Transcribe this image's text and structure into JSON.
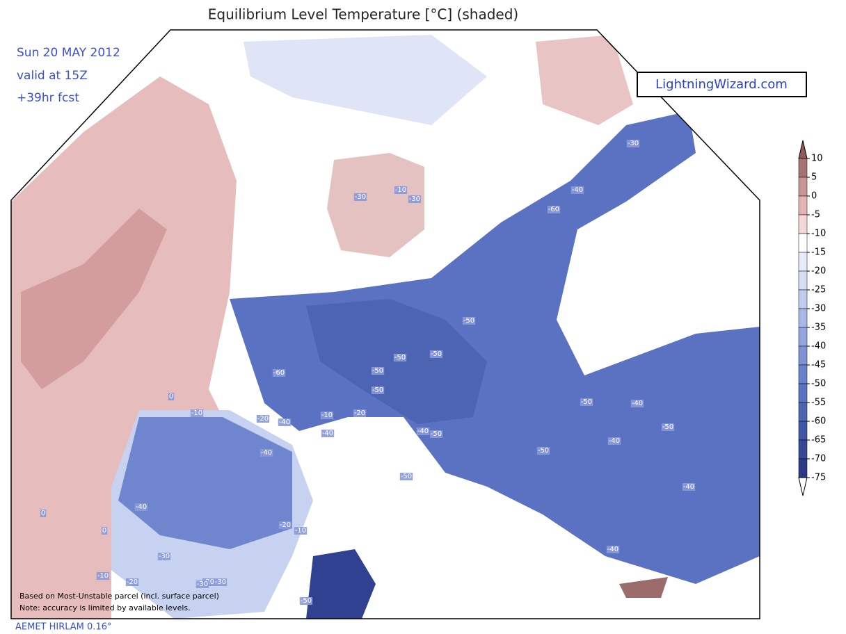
{
  "header": {
    "title": "Equilibrium Level Temperature [°C] (shaded)",
    "date": "Sun 20 MAY 2012",
    "valid": "valid at 15Z",
    "forecast": "+39hr fcst",
    "brand": "LightningWizard.com"
  },
  "colorbar": {
    "levels": [
      10,
      5,
      0,
      -5,
      -10,
      -15,
      -20,
      -25,
      -30,
      -35,
      -40,
      -45,
      -50,
      -55,
      -60,
      -65,
      -70,
      -75
    ],
    "colors": [
      "#8c5c5c",
      "#a87272",
      "#c99494",
      "#e2b4b4",
      "#f3d6d6",
      "#ffffff",
      "#e8ecfa",
      "#d6def4",
      "#c0ccee",
      "#a8b8e6",
      "#92a5dd",
      "#7c92d4",
      "#6a82ca",
      "#5a72bf",
      "#4d64b3",
      "#4156a5",
      "#364896",
      "#2a3a84",
      "#ffffff"
    ]
  },
  "map": {
    "contour_labels": [
      "-30",
      "-10",
      "-30",
      "-40",
      "-60",
      "-30",
      "-50",
      "-50",
      "-50",
      "-60",
      "-50",
      "-50",
      "-40",
      "-20",
      "-40",
      "-10",
      "-20",
      "-40",
      "-50",
      "-50",
      "-50",
      "-40",
      "-40",
      "-50",
      "-40",
      "-40",
      "-40",
      "-20",
      "-10",
      "-30",
      "-10",
      "-20",
      "-20",
      "-30",
      "-30",
      "-50",
      "0",
      "-10",
      "0",
      "0",
      "-40",
      "-50"
    ]
  },
  "footer": {
    "note1": "Based on Most-Unstable parcel (incl. surface parcel)",
    "note2": "Note: accuracy is limited by available levels.",
    "model": "AEMET HIRLAM 0.16°"
  }
}
